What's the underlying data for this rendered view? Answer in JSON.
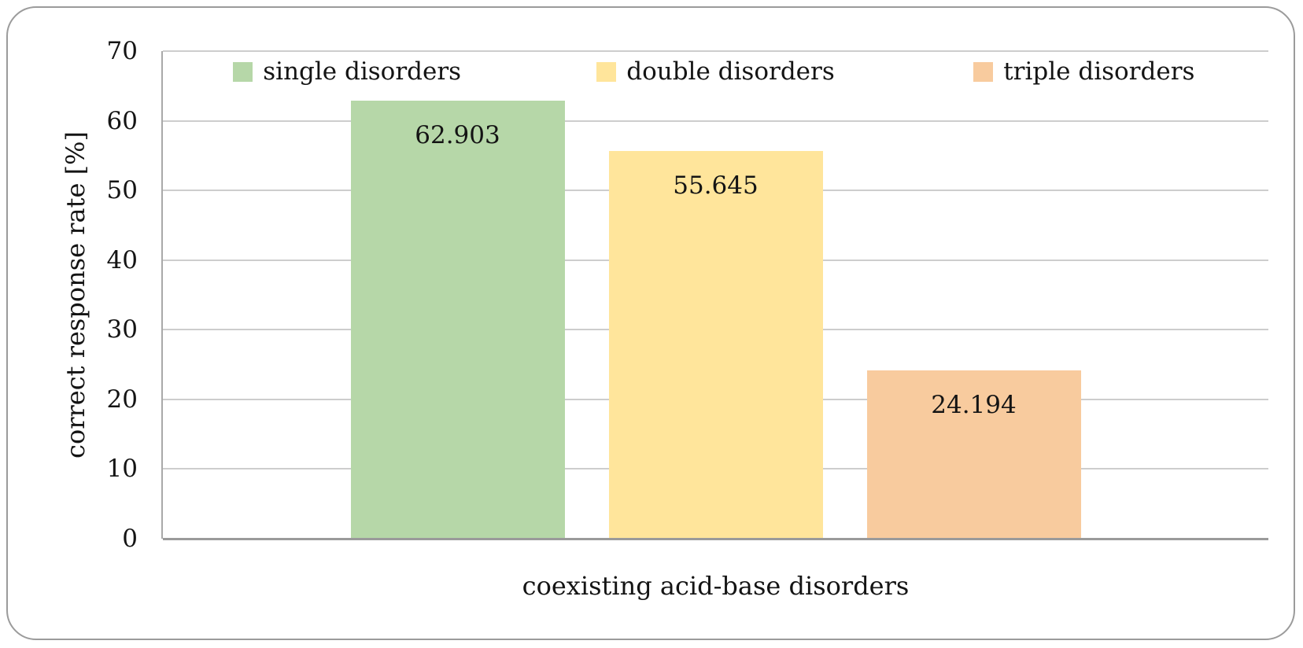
{
  "chart_data": {
    "type": "bar",
    "title": "",
    "xlabel": "coexisting acid-base disorders",
    "ylabel": "correct response rate [%]",
    "ylim": [
      0,
      70
    ],
    "yticks": [
      0,
      10,
      20,
      30,
      40,
      50,
      60,
      70
    ],
    "grid": "horizontal",
    "legend_position": "top inside plot, single row",
    "categories": [
      "coexisting acid-base disorders"
    ],
    "series": [
      {
        "name": "single disorders",
        "values": [
          62.903
        ],
        "data_label": "62.903",
        "color": "#b6d7a8"
      },
      {
        "name": "double disorders",
        "values": [
          55.645
        ],
        "data_label": "55.645",
        "color": "#ffe59b"
      },
      {
        "name": "triple disorders",
        "values": [
          24.194
        ],
        "data_label": "24.194",
        "color": "#f8cb9e"
      }
    ],
    "colors": {
      "gridline": "#cdcdcd",
      "axis": "#9a9a9a",
      "plot_left_border": "#a9a9a9",
      "frame_border": "#9b9b9b",
      "text": "#141414",
      "background": "#ffffff"
    }
  }
}
